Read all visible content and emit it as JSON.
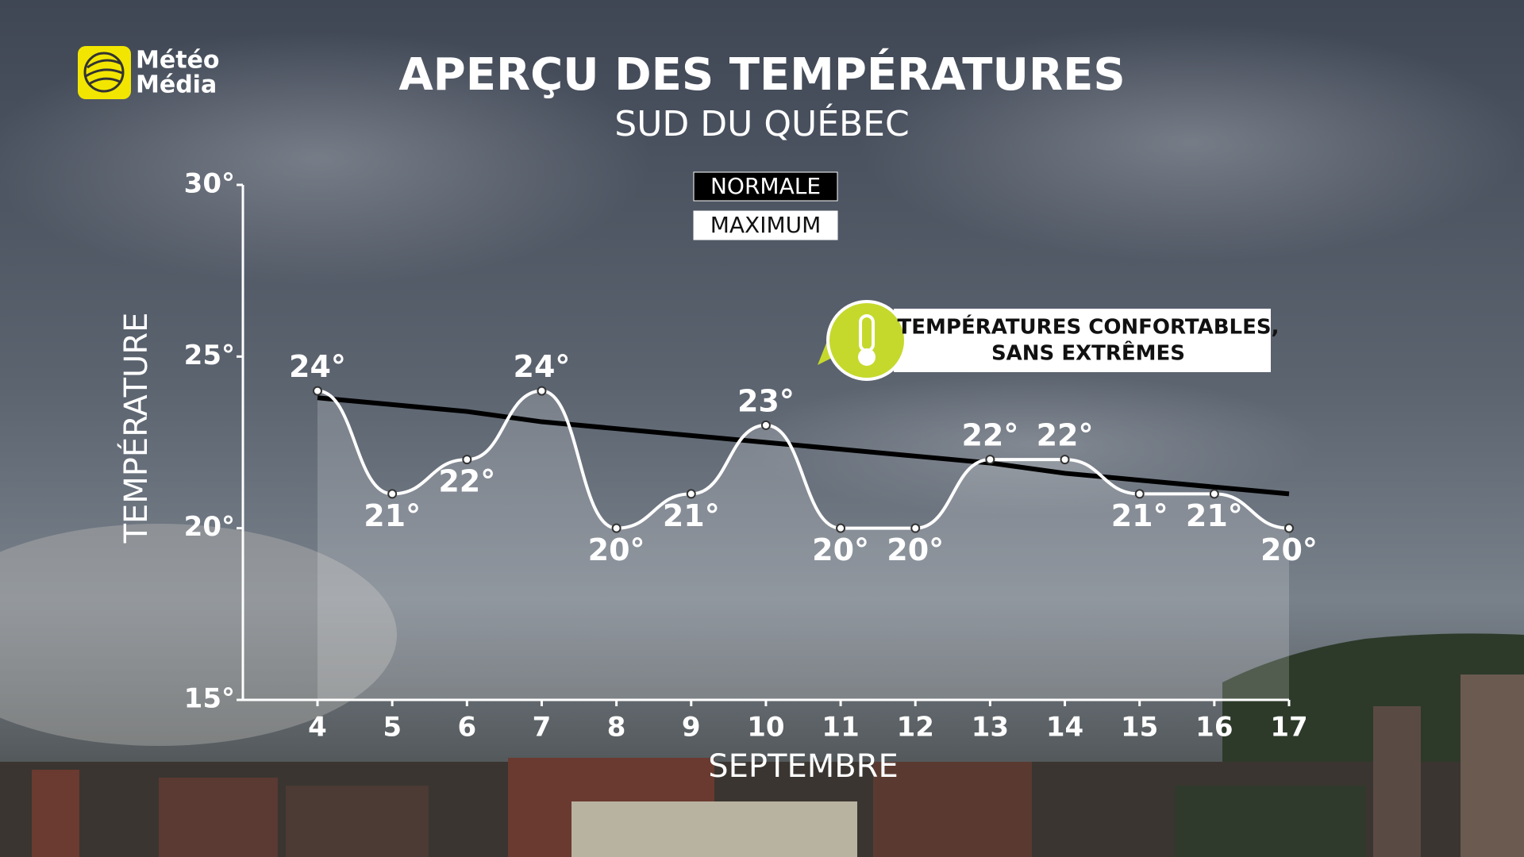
{
  "logo": [
    "Météo",
    "Média"
  ],
  "chart_data": {
    "type": "line",
    "title": "APERÇU DES TEMPÉRATURES",
    "subtitle": "SUD DU QUÉBEC",
    "y_label": "TEMPÉRATURE",
    "x_label": "SEPTEMBRE",
    "annotation": [
      "TEMPÉRATURES CONFORTABLES,",
      "SANS EXTRÊMES"
    ],
    "categories": [
      "4",
      "5",
      "6",
      "7",
      "8",
      "9",
      "10",
      "11",
      "12",
      "13",
      "14",
      "15",
      "16",
      "17"
    ],
    "series": [
      {
        "name": "NORMALE",
        "color": "#000000",
        "style": "straight",
        "values": [
          23.8,
          23.6,
          23.4,
          23.1,
          22.9,
          22.7,
          22.5,
          22.3,
          22.1,
          21.9,
          21.6,
          21.4,
          21.2,
          21.0
        ]
      },
      {
        "name": "MAXIMUM",
        "color": "#ffffff",
        "style": "smooth",
        "values": [
          24,
          21,
          22,
          24,
          20,
          21,
          23,
          20,
          20,
          22,
          22,
          21,
          21,
          20
        ],
        "value_labels": [
          "24°",
          "21°",
          "22°",
          "24°",
          "20°",
          "21°",
          "23°",
          "20°",
          "20°",
          "22°",
          "22°",
          "21°",
          "21°",
          "20°"
        ]
      }
    ],
    "ylim": [
      15,
      30
    ],
    "yticks": [
      {
        "value": 15,
        "label": "15°"
      },
      {
        "value": 20,
        "label": "20°"
      },
      {
        "value": 25,
        "label": "25°"
      },
      {
        "value": 30,
        "label": "30°"
      }
    ],
    "grid": false
  }
}
